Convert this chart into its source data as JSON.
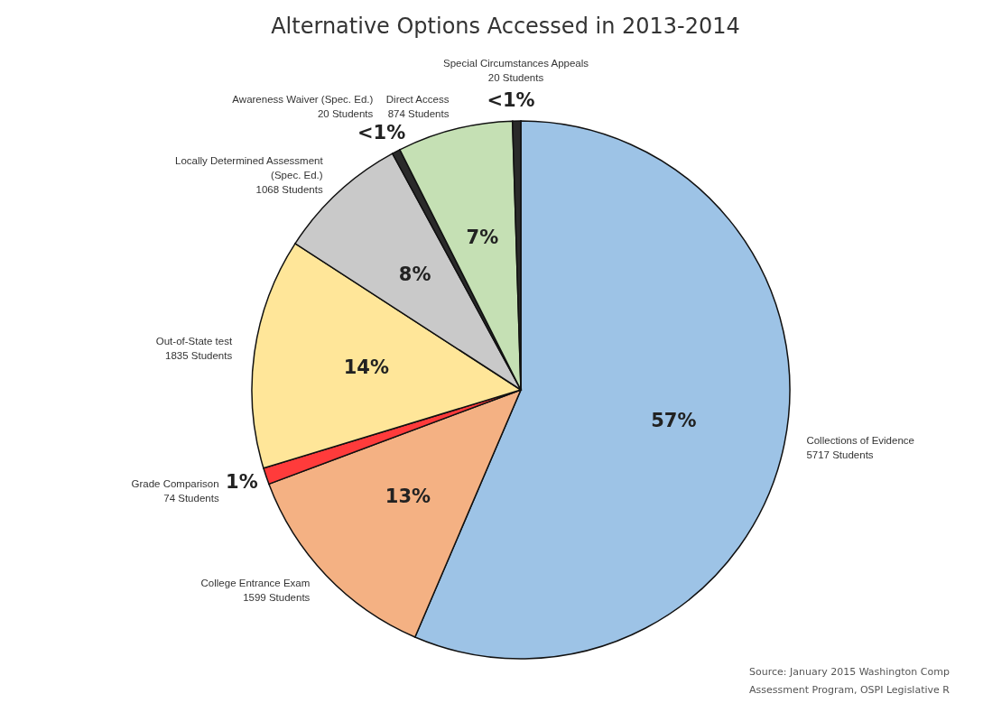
{
  "chart_data": {
    "type": "pie",
    "title": "Alternative Options Accessed in 2013-2014",
    "categories": [
      "Collections of Evidence\n5717 Students",
      "College Entrance Exam\n1599 Students",
      "Grade Comparison\n74 Students",
      "Out-of-State test\n1835 Students",
      "Locally Determined Assessment\n(Spec. Ed.)\n1068 Students",
      "Awareness Waiver (Spec. Ed.)\n20 Students",
      "Direct Access\n874 Students",
      "Special Circumstances Appeals\n20 Students"
    ],
    "values": [
      57,
      13,
      1,
      14,
      8,
      0.5,
      7,
      0.5
    ],
    "value_labels": [
      "57%",
      "13%",
      "1%",
      "14%",
      "8%",
      "<1%",
      "7%",
      "<1%"
    ],
    "colors": [
      "#9dc3e6",
      "#f4b183",
      "#ff3b3b",
      "#ffe699",
      "#c9c9c9",
      "#2a2a2a",
      "#c5e0b4",
      "#2a2a2a"
    ],
    "annotations": [
      "Source: January 2015 Washington Comp",
      "Assessment Program, OSPI Legislative R"
    ]
  }
}
